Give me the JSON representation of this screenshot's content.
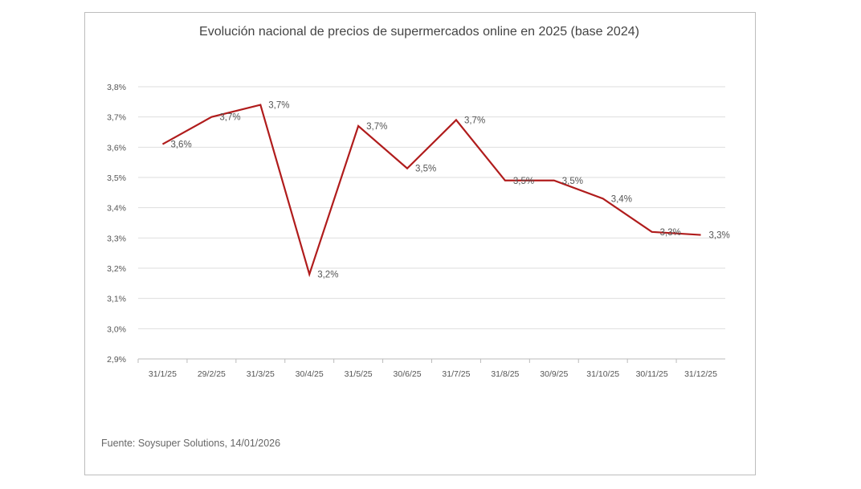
{
  "chart_data": {
    "type": "line",
    "title": "Evolución nacional de precios de supermercados online en 2025  (base 2024)",
    "source": "Fuente: Soysuper Solutions, 14/01/2026",
    "categories": [
      "31/1/25",
      "29/2/25",
      "31/3/25",
      "30/4/25",
      "31/5/25",
      "30/6/25",
      "31/7/25",
      "31/8/25",
      "30/9/25",
      "31/10/25",
      "30/11/25",
      "31/12/25"
    ],
    "values": [
      3.61,
      3.7,
      3.74,
      3.18,
      3.67,
      3.53,
      3.69,
      3.49,
      3.49,
      3.43,
      3.32,
      3.31
    ],
    "data_labels": [
      "3,6%",
      "3,7%",
      "3,7%",
      "3,2%",
      "3,7%",
      "3,5%",
      "3,7%",
      "3,5%",
      "3,5%",
      "3,4%",
      "3,3%",
      "3,3%"
    ],
    "y_ticks": [
      "2,9%",
      "3,0%",
      "3,1%",
      "3,2%",
      "3,3%",
      "3,4%",
      "3,5%",
      "3,6%",
      "3,7%",
      "3,8%"
    ],
    "ylim": [
      2.9,
      3.8
    ],
    "xlabel": "",
    "ylabel": "",
    "grid": true,
    "legend": "none",
    "line_color": "#b01c1c"
  }
}
